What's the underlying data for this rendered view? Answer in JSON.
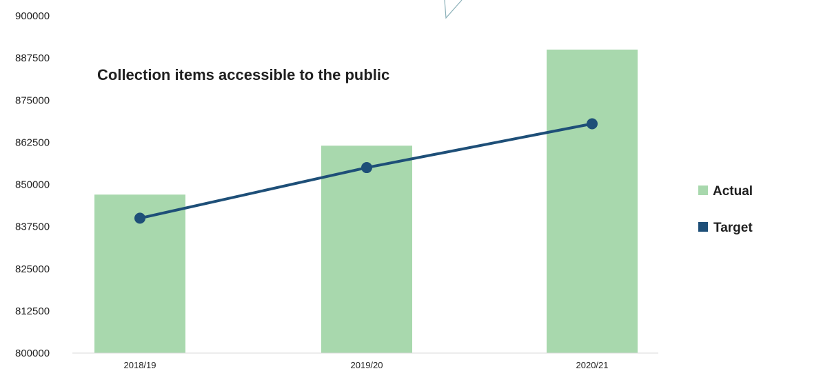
{
  "chart_data": {
    "type": "bar",
    "title": "Collection items accessible to the public",
    "categories": [
      "2018/19",
      "2019/20",
      "2020/21"
    ],
    "series": [
      {
        "name": "Actual",
        "type": "bar",
        "values": [
          847000,
          861500,
          890000
        ],
        "color": "#a8d8ad"
      },
      {
        "name": "Target",
        "type": "line",
        "values": [
          840000,
          855000,
          868000
        ],
        "color": "#1e4f78"
      }
    ],
    "yticks": [
      "800000",
      "812500",
      "825000",
      "837500",
      "850000",
      "862500",
      "875000",
      "887500",
      "900000"
    ],
    "ylim": [
      800000,
      900000
    ],
    "legend_position": "right",
    "grid": false
  }
}
